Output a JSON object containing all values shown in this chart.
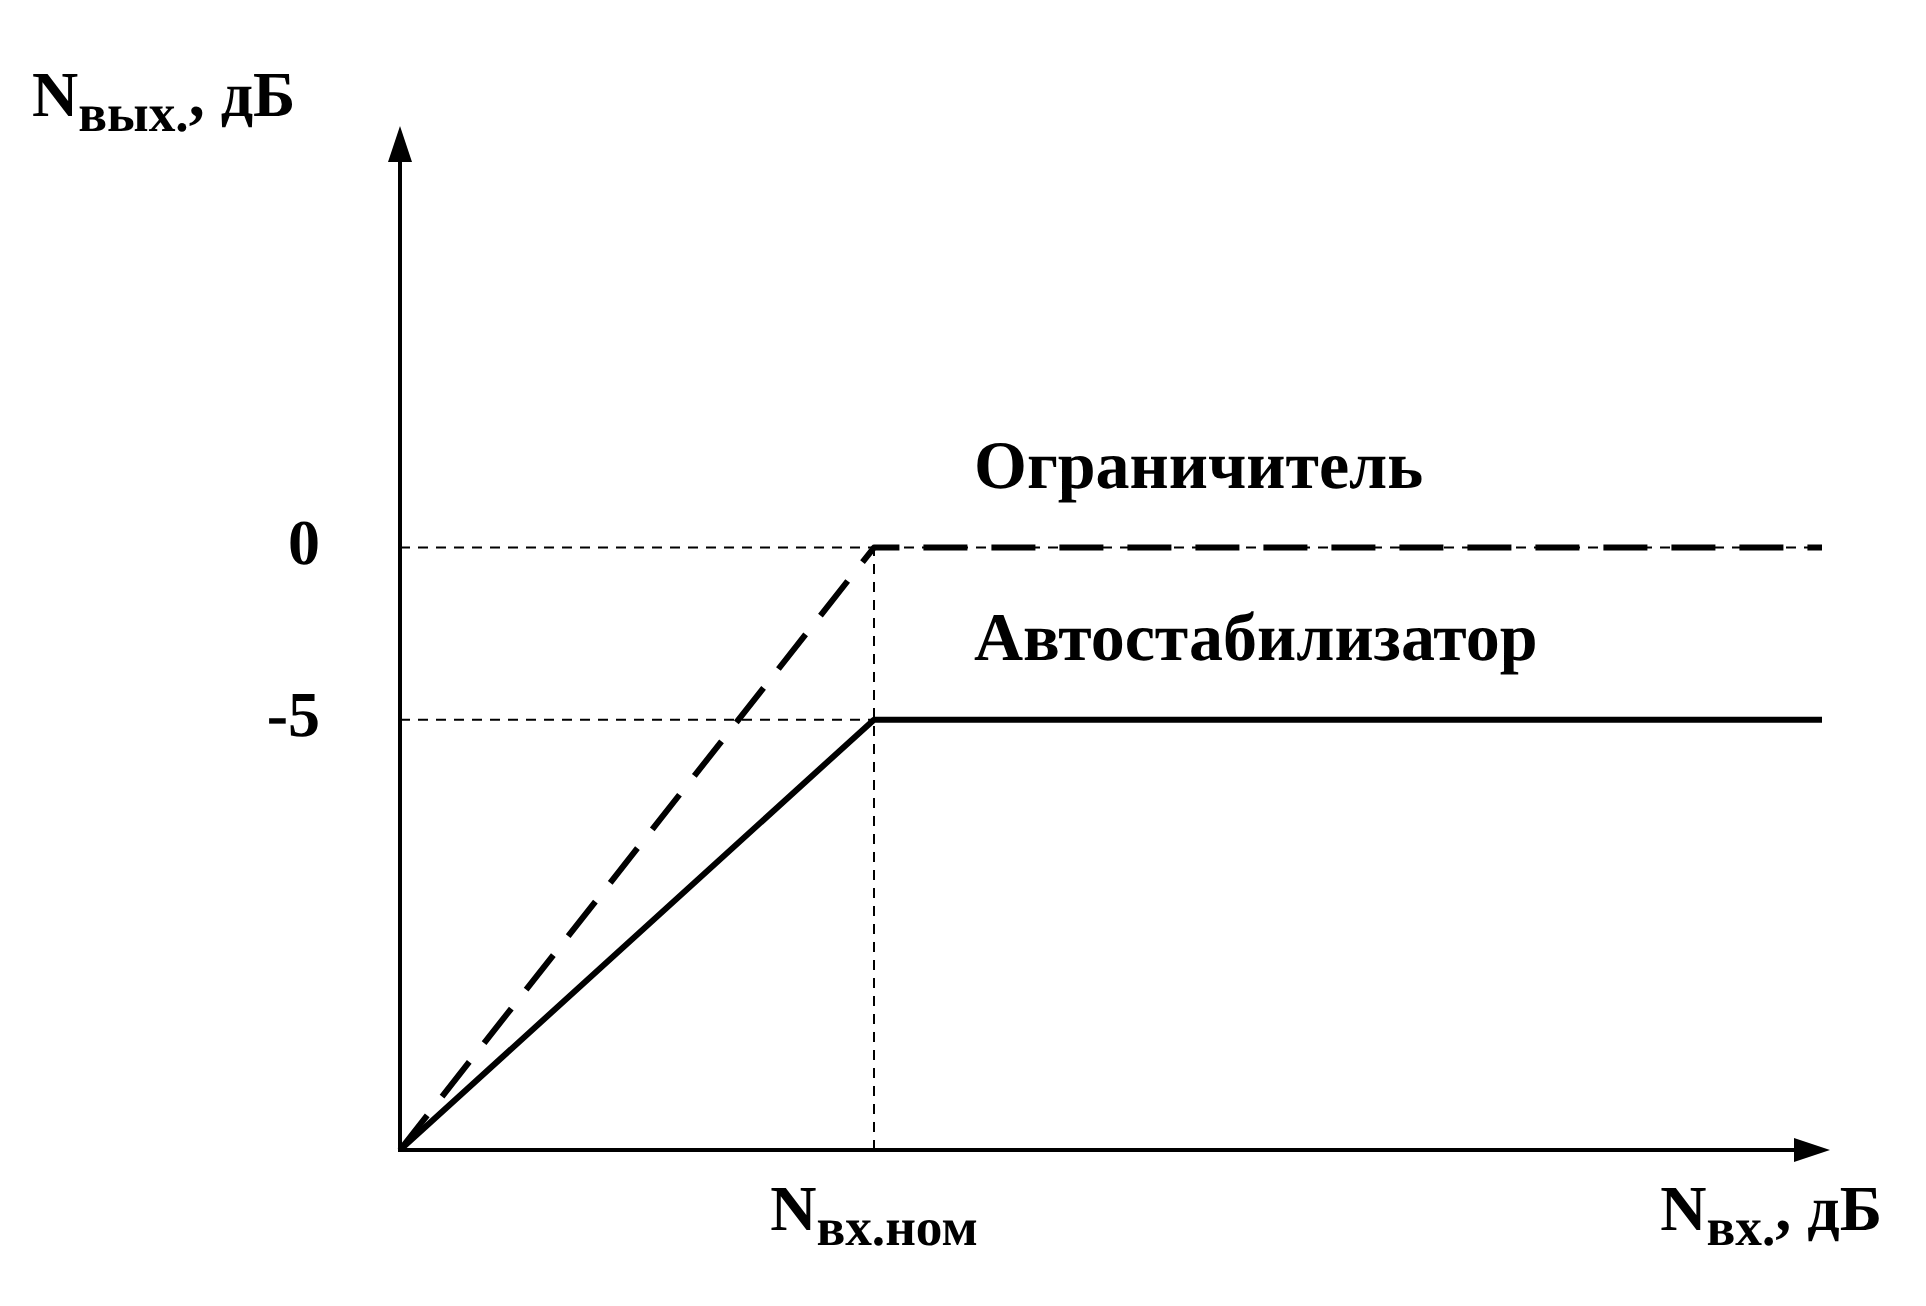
{
  "chart_data": {
    "type": "line",
    "xlabel": "N$_{вх.}$, дБ",
    "ylabel": "N$_{вых.}$, дБ",
    "categories": [
      null,
      "N$_{вх.ном}$",
      null,
      null
    ],
    "series": [
      {
        "name": "Ограничитель",
        "color": "#000000",
        "line_style": "dashed",
        "values": [
          -17.5,
          0,
          0,
          0
        ]
      },
      {
        "name": "Автостабилизатор",
        "color": "#000000",
        "line_style": "solid",
        "values": [
          -17.5,
          -5,
          -5,
          -5
        ]
      }
    ],
    "ylim": [
      -17.5,
      12
    ],
    "yticks": [
      0,
      -5
    ],
    "ref_lines": [
      {
        "axis": "y",
        "value": 0,
        "line_style": "dashed",
        "color": "#000000"
      },
      {
        "axis": "y",
        "value": -5,
        "line_style": "dashed",
        "color": "#000000"
      },
      {
        "axis": "x",
        "value": "N$_{вх.ном}$",
        "line_style": "dashed",
        "color": "#000000"
      }
    ],
    "grid": false,
    "legend": false,
    "marker": "none"
  }
}
